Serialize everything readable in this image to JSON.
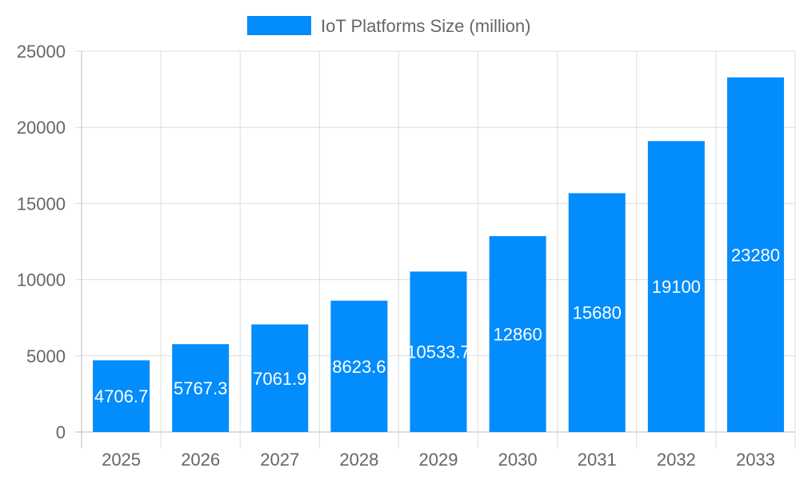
{
  "chart_data": {
    "type": "bar",
    "categories": [
      "2025",
      "2026",
      "2027",
      "2028",
      "2029",
      "2030",
      "2031",
      "2032",
      "2033"
    ],
    "series": [
      {
        "name": "IoT Platforms Size (million)",
        "values": [
          4706.7,
          5767.3,
          7061.9,
          8623.6,
          10533.7,
          12860,
          15680,
          19100,
          23280
        ]
      }
    ],
    "data_labels": [
      "4706.7",
      "5767.3",
      "7061.9",
      "8623.6",
      "10533.7",
      "12860",
      "15680",
      "19100",
      "23280"
    ],
    "ylim": [
      0,
      25000
    ],
    "yticks": [
      "0",
      "5000",
      "10000",
      "15000",
      "20000",
      "25000"
    ],
    "grid": true,
    "legend": "top",
    "colors": {
      "bar": "#038cfc",
      "grid": "#dddddd",
      "text": "#666666"
    }
  }
}
